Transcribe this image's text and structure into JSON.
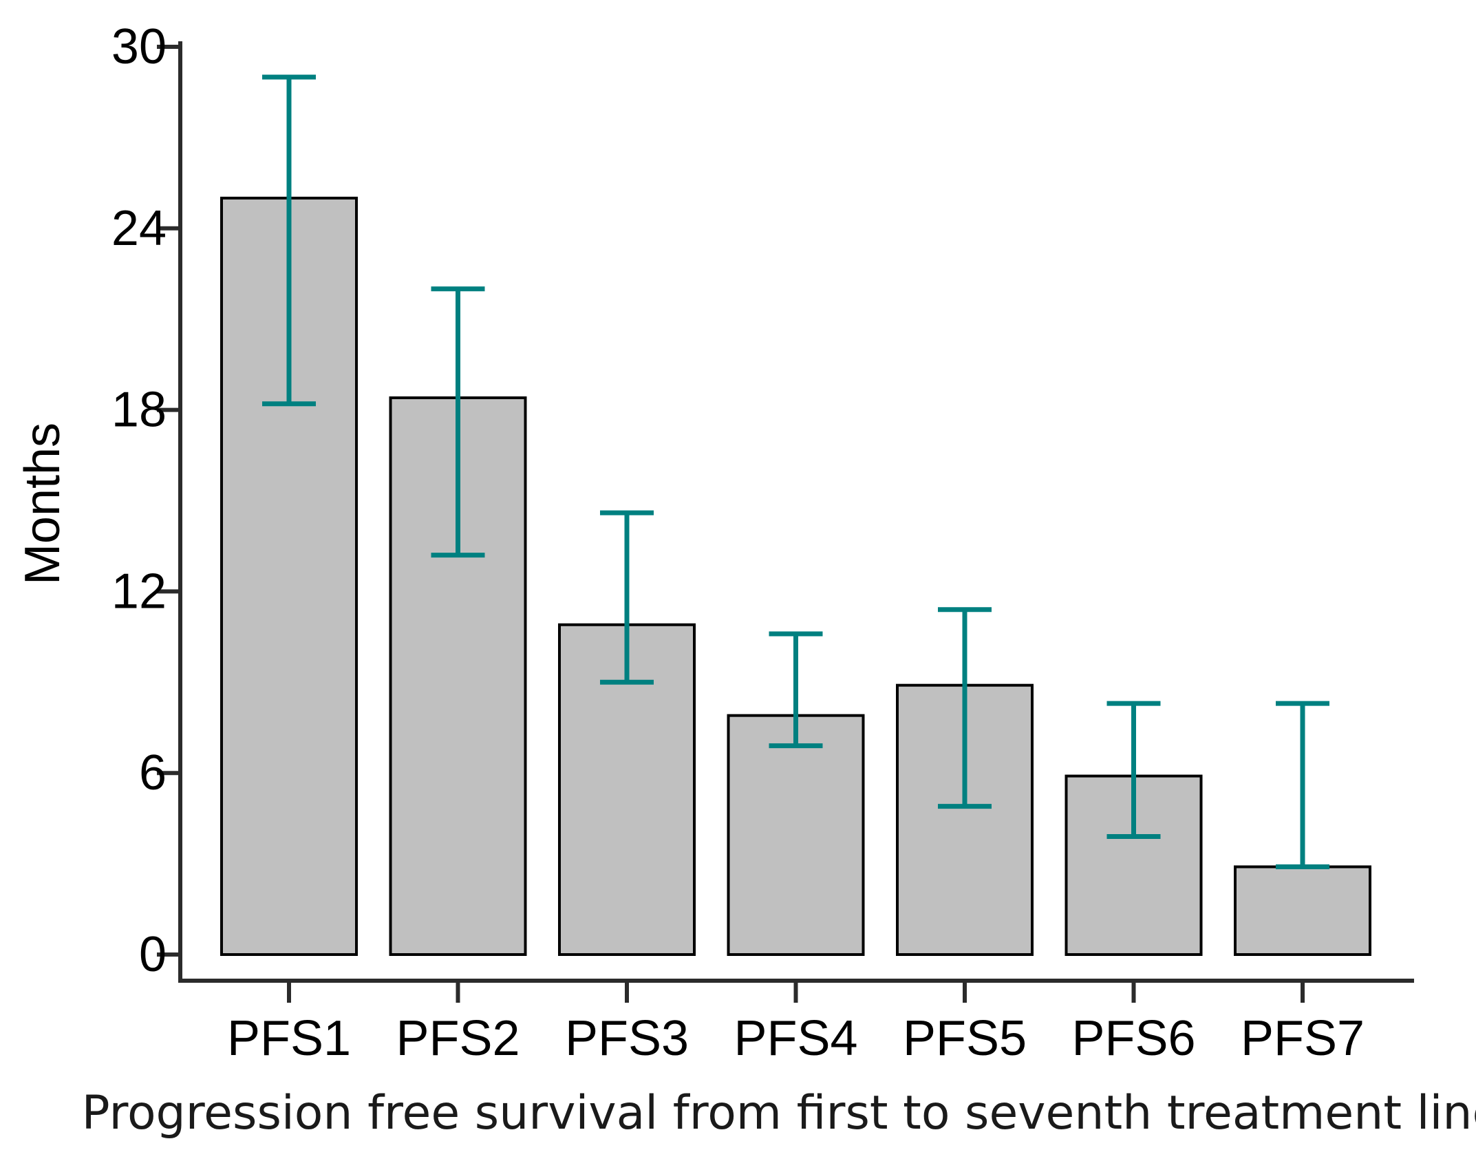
{
  "chart_data": {
    "type": "bar",
    "title": "",
    "xlabel": "Progression free survival from first to seventh treatment line",
    "ylabel": "Months",
    "ylim": [
      0,
      30
    ],
    "yticks": [
      0,
      6,
      12,
      18,
      24,
      30
    ],
    "grid": false,
    "legend": "none",
    "categories": [
      "PFS1",
      "PFS2",
      "PFS3",
      "PFS4",
      "PFS5",
      "PFS6",
      "PFS7"
    ],
    "values": [
      25.0,
      18.4,
      10.9,
      7.9,
      8.9,
      5.9,
      2.9
    ],
    "error_bars": [
      {
        "low": 18.2,
        "high": 29.0
      },
      {
        "low": 13.2,
        "high": 22.0
      },
      {
        "low": 9.0,
        "high": 14.6
      },
      {
        "low": 6.9,
        "high": 10.6
      },
      {
        "low": 4.9,
        "high": 11.4
      },
      {
        "low": 3.9,
        "high": 8.3
      },
      {
        "low": 2.9,
        "high": 8.3
      }
    ],
    "colors": {
      "bar_fill": "#c0c0c0",
      "bar_stroke": "#000000",
      "error_bar": "#008080",
      "axis": "#2b2b2b"
    }
  }
}
